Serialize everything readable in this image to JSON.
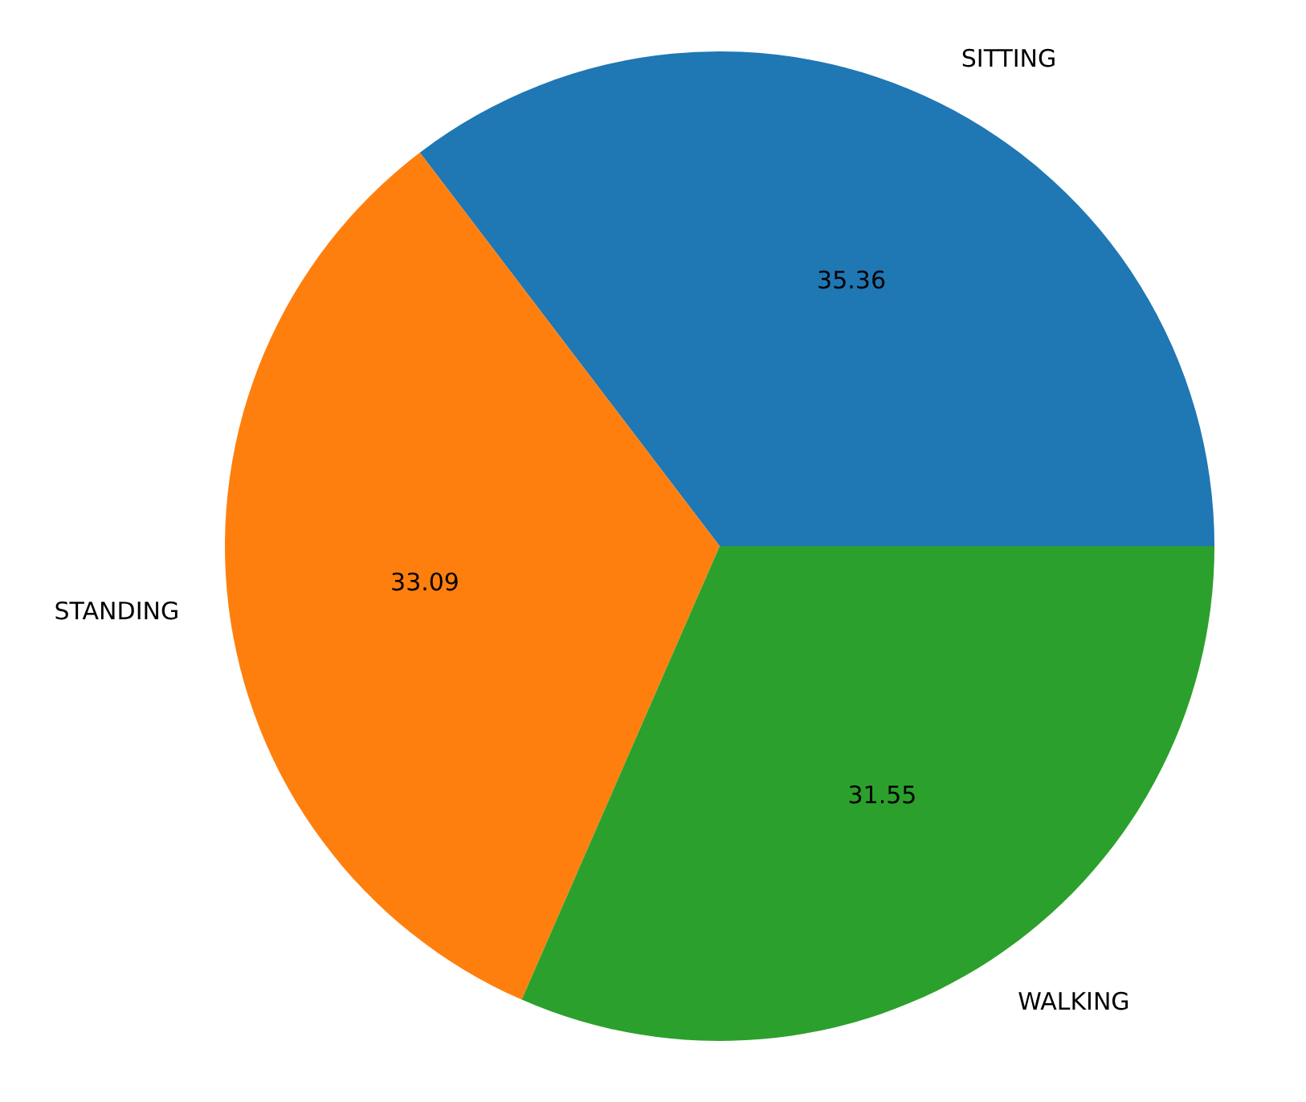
{
  "chart_data": {
    "type": "pie",
    "categories": [
      "SITTING",
      "STANDING",
      "WALKING"
    ],
    "values": [
      35.36,
      33.09,
      31.55
    ],
    "colors": [
      "#1f77b4",
      "#ff7f0e",
      "#2ca02c"
    ],
    "data_labels": true
  }
}
